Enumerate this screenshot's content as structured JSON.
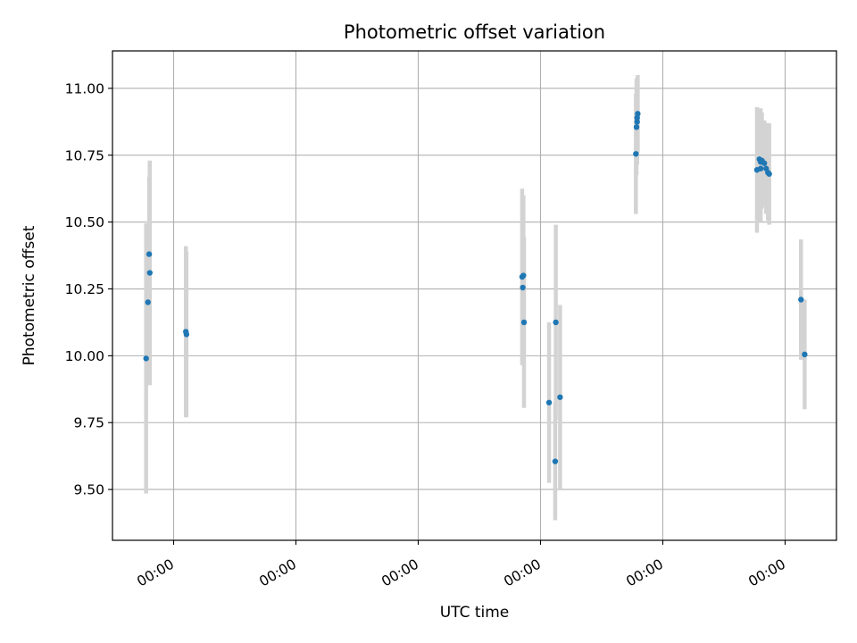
{
  "chart_data": {
    "type": "scatter",
    "title": "Photometric offset variation",
    "xlabel": "UTC time",
    "ylabel": "Photometric offset",
    "x_axis": {
      "scale": "time",
      "range": [
        -0.5,
        5.42
      ],
      "ticks": [
        0,
        1,
        2,
        3,
        4,
        5
      ],
      "tick_labels": [
        "00:00",
        "00:00",
        "00:00",
        "00:00",
        "00:00",
        "00:00"
      ]
    },
    "y_axis": {
      "range": [
        9.31,
        11.14
      ],
      "ticks": [
        9.5,
        9.75,
        10.0,
        10.25,
        10.5,
        10.75,
        11.0
      ],
      "tick_labels": [
        "9.50",
        "9.75",
        "10.00",
        "10.25",
        "10.50",
        "10.75",
        "11.00"
      ]
    },
    "grid": true,
    "colors": {
      "points": "#1f77b4",
      "errorbars": "#d3d3d3",
      "grid": "#b0b0b0"
    },
    "series": [
      {
        "points": [
          {
            "x": -0.225,
            "y": 9.99,
            "err": 0.505
          },
          {
            "x": -0.2,
            "y": 10.38,
            "err": 0.29
          },
          {
            "x": -0.195,
            "y": 10.31,
            "err": 0.42
          },
          {
            "x": 0.1,
            "y": 10.09,
            "err": 0.32
          },
          {
            "x": 0.105,
            "y": 10.08,
            "err": 0.31
          },
          {
            "x": -0.21,
            "y": 10.2,
            "err": 0.29
          },
          {
            "x": 2.85,
            "y": 10.295,
            "err": 0.33
          },
          {
            "x": 2.86,
            "y": 10.3,
            "err": 0.3
          },
          {
            "x": 2.855,
            "y": 10.255,
            "err": 0.29
          },
          {
            "x": 2.865,
            "y": 10.125,
            "err": 0.32
          },
          {
            "x": 3.07,
            "y": 9.825,
            "err": 0.3
          },
          {
            "x": 3.12,
            "y": 9.605,
            "err": 0.22
          },
          {
            "x": 3.125,
            "y": 10.125,
            "err": 0.365
          },
          {
            "x": 3.16,
            "y": 9.845,
            "err": 0.345
          },
          {
            "x": 3.78,
            "y": 10.755,
            "err": 0.225
          },
          {
            "x": 3.785,
            "y": 10.855,
            "err": 0.18
          },
          {
            "x": 3.79,
            "y": 10.875,
            "err": 0.16
          },
          {
            "x": 3.79,
            "y": 10.89,
            "err": 0.15
          },
          {
            "x": 3.795,
            "y": 10.905,
            "err": 0.145
          },
          {
            "x": 4.77,
            "y": 10.695,
            "err": 0.235
          },
          {
            "x": 4.79,
            "y": 10.735,
            "err": 0.19
          },
          {
            "x": 4.8,
            "y": 10.725,
            "err": 0.2
          },
          {
            "x": 4.81,
            "y": 10.73,
            "err": 0.18
          },
          {
            "x": 4.83,
            "y": 10.72,
            "err": 0.16
          },
          {
            "x": 4.845,
            "y": 10.7,
            "err": 0.17
          },
          {
            "x": 4.86,
            "y": 10.685,
            "err": 0.18
          },
          {
            "x": 4.87,
            "y": 10.68,
            "err": 0.19
          },
          {
            "x": 4.8,
            "y": 10.7,
            "err": 0.2
          },
          {
            "x": 5.13,
            "y": 10.21,
            "err": 0.225
          },
          {
            "x": 5.16,
            "y": 10.005,
            "err": 0.205
          }
        ]
      }
    ]
  }
}
